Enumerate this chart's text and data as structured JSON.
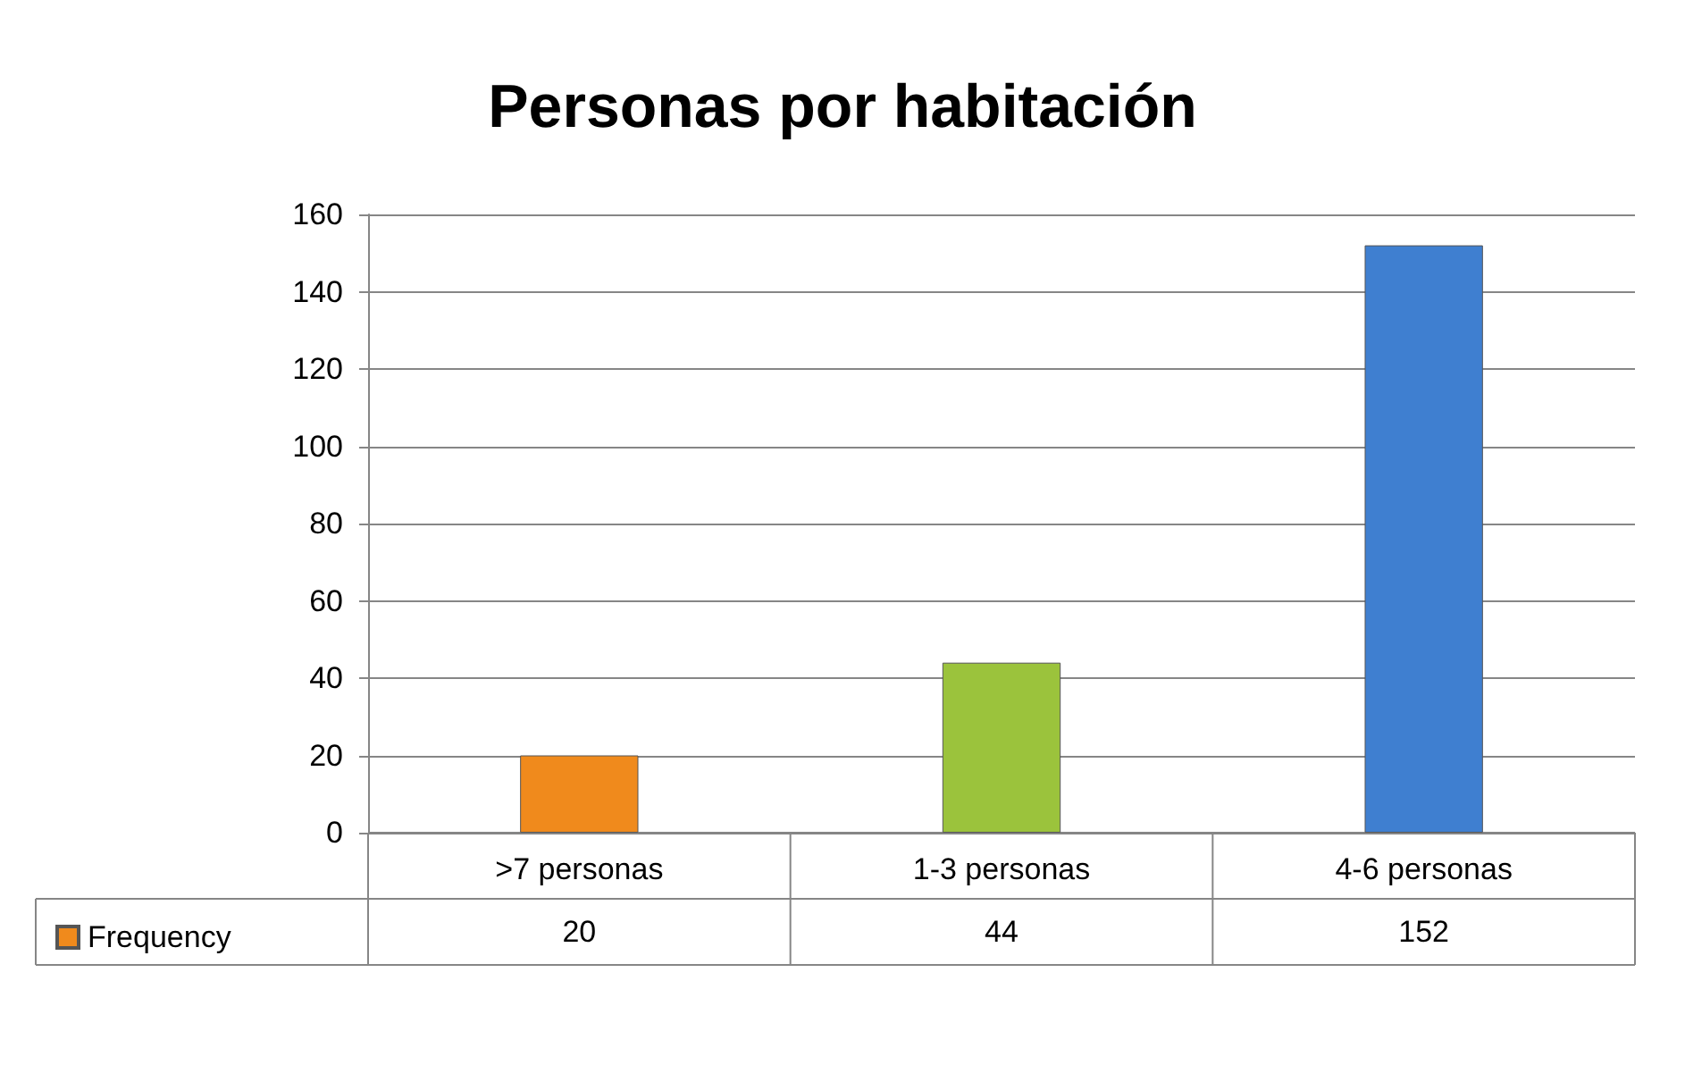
{
  "chart_data": {
    "type": "bar",
    "title": "Personas por habitación",
    "categories": [
      ">7 personas",
      "1-3 personas",
      "4-6 personas"
    ],
    "series": [
      {
        "name": "Frequency",
        "color": "#f08a1c",
        "colors": [
          "#f08a1c",
          "#9bc33c",
          "#3f7fd0"
        ],
        "values": [
          20,
          44,
          152
        ]
      }
    ],
    "ylim": [
      0,
      160
    ],
    "yticks": [
      0,
      20,
      40,
      60,
      80,
      100,
      120,
      140,
      160
    ],
    "grid": "y",
    "legend": "bottom left",
    "data_labels": true
  }
}
